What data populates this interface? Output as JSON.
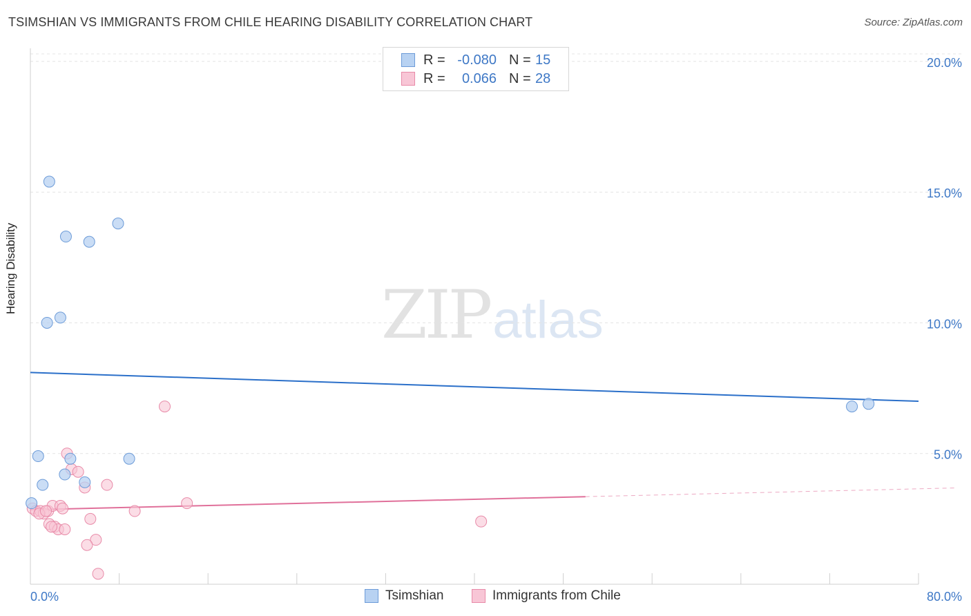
{
  "title": "TSIMSHIAN VS IMMIGRANTS FROM CHILE HEARING DISABILITY CORRELATION CHART",
  "source": "Source: ZipAtlas.com",
  "watermark": {
    "part1": "ZIP",
    "part2": "atlas"
  },
  "legend_top": {
    "rows": [
      {
        "r_label": "R =",
        "r_value": "-0.080",
        "n_label": "N =",
        "n_value": "15"
      },
      {
        "r_label": "R =",
        "r_value": "0.066",
        "n_label": "N =",
        "n_value": "28"
      }
    ]
  },
  "legend_bottom": {
    "items": [
      {
        "label": "Tsimshian"
      },
      {
        "label": "Immigrants from Chile"
      }
    ]
  },
  "colors": {
    "tsimshian_fill": "#b8d2f2",
    "tsimshian_stroke": "#6c9bd8",
    "tsimshian_line": "#2a6fc9",
    "chile_fill": "#f8c6d6",
    "chile_stroke": "#e88aa8",
    "chile_line": "#e0709a",
    "tick_label": "#3e78c6",
    "grid": "#e4e4e4"
  },
  "chart_data": {
    "type": "scatter",
    "title": "TSIMSHIAN VS IMMIGRANTS FROM CHILE HEARING DISABILITY CORRELATION CHART",
    "xlabel": "",
    "ylabel": "Hearing Disability",
    "xlim": [
      0,
      80
    ],
    "ylim": [
      0,
      20.5
    ],
    "x_tick_labels": [
      "0.0%",
      "80.0%"
    ],
    "y_ticks": [
      5,
      10,
      15,
      20
    ],
    "y_tick_labels": [
      "5.0%",
      "10.0%",
      "15.0%",
      "20.0%"
    ],
    "grid": "horizontal dashed",
    "legend": "top-center",
    "series": [
      {
        "name": "Tsimshian",
        "points": [
          {
            "x": 1.7,
            "y": 15.4
          },
          {
            "x": 3.2,
            "y": 13.3
          },
          {
            "x": 5.3,
            "y": 13.1
          },
          {
            "x": 7.9,
            "y": 13.8
          },
          {
            "x": 1.5,
            "y": 10.0
          },
          {
            "x": 2.7,
            "y": 10.2
          },
          {
            "x": 0.7,
            "y": 4.9
          },
          {
            "x": 3.6,
            "y": 4.8
          },
          {
            "x": 8.9,
            "y": 4.8
          },
          {
            "x": 3.1,
            "y": 4.2
          },
          {
            "x": 1.1,
            "y": 3.8
          },
          {
            "x": 4.9,
            "y": 3.9
          },
          {
            "x": 0.1,
            "y": 3.1
          },
          {
            "x": 74.0,
            "y": 6.8
          },
          {
            "x": 75.5,
            "y": 6.9
          }
        ],
        "trend": {
          "x": [
            0,
            80
          ],
          "y": [
            8.1,
            7.0
          ]
        }
      },
      {
        "name": "Immigrants from Chile",
        "points": [
          {
            "x": 0.2,
            "y": 2.9
          },
          {
            "x": 0.5,
            "y": 2.8
          },
          {
            "x": 0.9,
            "y": 2.8
          },
          {
            "x": 1.2,
            "y": 2.7
          },
          {
            "x": 1.6,
            "y": 2.8
          },
          {
            "x": 2.0,
            "y": 3.0
          },
          {
            "x": 2.7,
            "y": 3.0
          },
          {
            "x": 3.3,
            "y": 5.0
          },
          {
            "x": 3.7,
            "y": 4.4
          },
          {
            "x": 4.3,
            "y": 4.3
          },
          {
            "x": 4.9,
            "y": 3.7
          },
          {
            "x": 1.7,
            "y": 2.3
          },
          {
            "x": 2.2,
            "y": 2.2
          },
          {
            "x": 2.5,
            "y": 2.1
          },
          {
            "x": 3.1,
            "y": 2.1
          },
          {
            "x": 5.4,
            "y": 2.5
          },
          {
            "x": 5.9,
            "y": 1.7
          },
          {
            "x": 5.1,
            "y": 1.5
          },
          {
            "x": 6.1,
            "y": 0.4
          },
          {
            "x": 6.9,
            "y": 3.8
          },
          {
            "x": 9.4,
            "y": 2.8
          },
          {
            "x": 12.1,
            "y": 6.8
          },
          {
            "x": 14.1,
            "y": 3.1
          },
          {
            "x": 40.6,
            "y": 2.4
          },
          {
            "x": 1.9,
            "y": 2.2
          },
          {
            "x": 0.8,
            "y": 2.7
          },
          {
            "x": 2.9,
            "y": 2.9
          },
          {
            "x": 1.4,
            "y": 2.8
          }
        ],
        "trend": {
          "x": [
            0,
            80
          ],
          "y": [
            2.85,
            3.65
          ]
        },
        "trend_solid_until_x": 50
      }
    ]
  }
}
